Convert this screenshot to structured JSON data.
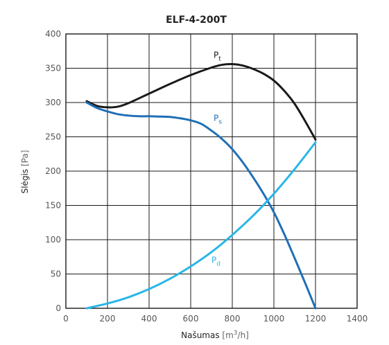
{
  "chart_data": {
    "type": "line",
    "title": "ELF-4-200T",
    "xlabel": "Našumas",
    "xlabel_unit_open": "[m",
    "xlabel_unit_sup": "3",
    "xlabel_unit_close": "/h]",
    "ylabel": "Slėgis",
    "ylabel_unit": "[Pa]",
    "xlim": [
      0,
      1400
    ],
    "ylim": [
      0,
      400
    ],
    "x_ticks": [
      0,
      200,
      400,
      600,
      800,
      1000,
      1200,
      1400
    ],
    "y_ticks": [
      0,
      50,
      100,
      150,
      200,
      250,
      300,
      350,
      400
    ],
    "x_tick_labels": [
      "0",
      "200",
      "400",
      "600",
      "800",
      "1000",
      "1200",
      "1400"
    ],
    "y_tick_labels": [
      "0",
      "50",
      "100",
      "150",
      "200",
      "250",
      "300",
      "350",
      "400"
    ],
    "grid": true,
    "series": [
      {
        "name": "Pt",
        "label_main": "P",
        "label_sub": "t",
        "label_at": [
          710,
          365
        ],
        "color": "#1a1a1a",
        "x": [
          100,
          150,
          200,
          250,
          300,
          400,
          500,
          600,
          700,
          750,
          800,
          850,
          900,
          950,
          1000,
          1050,
          1100,
          1150,
          1200
        ],
        "y": [
          302,
          295,
          293,
          294,
          299,
          313,
          327,
          340,
          351,
          355,
          356,
          354,
          349,
          342,
          332,
          317,
          298,
          273,
          246
        ]
      },
      {
        "name": "Ps",
        "label_main": "P",
        "label_sub": "s",
        "label_at": [
          710,
          273
        ],
        "color": "#1f6fb5",
        "x": [
          100,
          150,
          200,
          250,
          300,
          350,
          400,
          450,
          500,
          550,
          600,
          650,
          700,
          750,
          800,
          850,
          900,
          950,
          1000,
          1050,
          1100,
          1150,
          1200
        ],
        "y": [
          300,
          292,
          287,
          283,
          281,
          280,
          280,
          279.5,
          279,
          277,
          274,
          269,
          259,
          247,
          232,
          213,
          191,
          167,
          140,
          108,
          73,
          37,
          0
        ]
      },
      {
        "name": "Pd",
        "label_main": "P",
        "label_sub": "d",
        "label_at": [
          700,
          66
        ],
        "color": "#29b6e8",
        "x": [
          100,
          200,
          300,
          400,
          500,
          600,
          700,
          800,
          900,
          1000,
          1100,
          1200
        ],
        "y": [
          0,
          7,
          16,
          28,
          43,
          61,
          82,
          107,
          135,
          167,
          203,
          242
        ]
      }
    ]
  }
}
